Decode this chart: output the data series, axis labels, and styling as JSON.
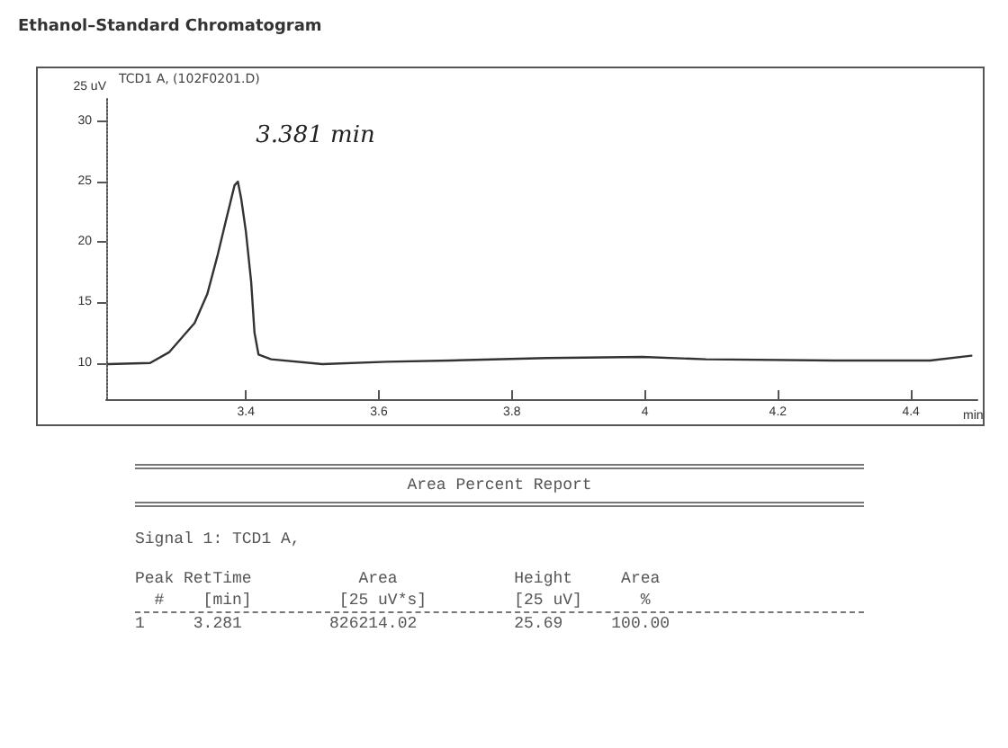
{
  "chart_data": {
    "type": "line",
    "title": "Ethanol–Standard Chromatogram",
    "xlabel": "min",
    "ylabel": "25 uV",
    "x": [
      3.193,
      3.256,
      3.285,
      3.323,
      3.342,
      3.357,
      3.371,
      3.383,
      3.388,
      3.393,
      3.4,
      3.408,
      3.413,
      3.419,
      3.438,
      3.515,
      3.612,
      3.708,
      3.852,
      3.996,
      4.092,
      4.285,
      4.429,
      4.491
    ],
    "series": [
      {
        "color": "#333333",
        "values": [
          9.9,
          10.0,
          10.9,
          13.3,
          15.7,
          18.8,
          22.0,
          24.7,
          25.0,
          23.6,
          20.9,
          16.7,
          12.5,
          10.7,
          10.3,
          9.9,
          10.1,
          10.2,
          10.4,
          10.5,
          10.3,
          10.2,
          10.2,
          10.6
        ]
      }
    ],
    "xlim": [
      3.19,
      4.5
    ],
    "xticks": [
      3.4,
      3.6,
      3.8,
      4,
      4.2,
      4.4
    ],
    "ylim": [
      7,
      32
    ],
    "yticks": [
      10,
      15,
      20,
      25,
      30
    ],
    "grid": false,
    "marker": "none",
    "line_style": "solid",
    "annotations": [
      {
        "text": "3.381 min",
        "x": 3.388,
        "y": 25
      },
      "TCD1 A,  (102F0201.D)",
      "Area Percent Report",
      "Signal 1: TCD1 A,",
      "Peak RetTime           Area            Height     Area",
      "  #    [min]         [25 uV*s]         [25 uV]      %",
      "1     3.281         826214.02          25.69     100.00"
    ]
  }
}
